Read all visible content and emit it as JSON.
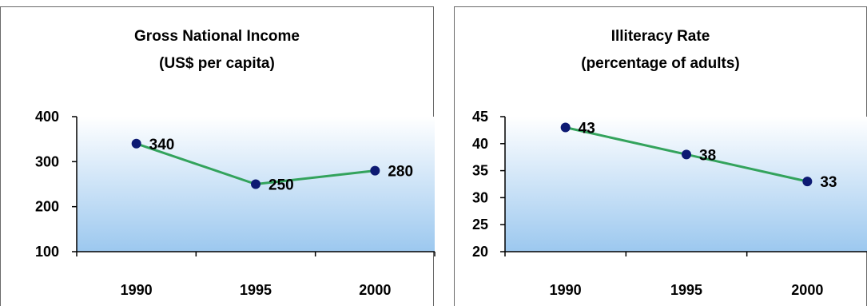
{
  "chart_data": [
    {
      "type": "line",
      "title": "Gross National Income",
      "subtitle": "(US$ per capita)",
      "categories": [
        "1990",
        "1995",
        "2000"
      ],
      "series": [
        {
          "values": [
            340,
            250,
            280
          ],
          "data_labels": [
            "340",
            "250",
            "280"
          ]
        }
      ],
      "ylim": [
        100,
        400
      ],
      "yticks": [
        100,
        200,
        300,
        400
      ],
      "ytick_labels": [
        "100",
        "200",
        "300",
        "400"
      ],
      "grid": false,
      "legend": "none",
      "line_color": "#33a35c",
      "marker_color": "#0d1a73",
      "plot_gradient": [
        "#ffffff",
        "#9cc8ef"
      ]
    },
    {
      "type": "line",
      "title": "Illiteracy Rate",
      "subtitle": "(percentage of adults)",
      "categories": [
        "1990",
        "1995",
        "2000"
      ],
      "series": [
        {
          "values": [
            43,
            38,
            33
          ],
          "data_labels": [
            "43",
            "38",
            "33"
          ]
        }
      ],
      "ylim": [
        20,
        45
      ],
      "yticks": [
        20,
        25,
        30,
        35,
        40,
        45
      ],
      "ytick_labels": [
        "20",
        "25",
        "30",
        "35",
        "40",
        "45"
      ],
      "grid": false,
      "legend": "none",
      "line_color": "#33a35c",
      "marker_color": "#0d1a73",
      "plot_gradient": [
        "#ffffff",
        "#9cc8ef"
      ]
    }
  ]
}
